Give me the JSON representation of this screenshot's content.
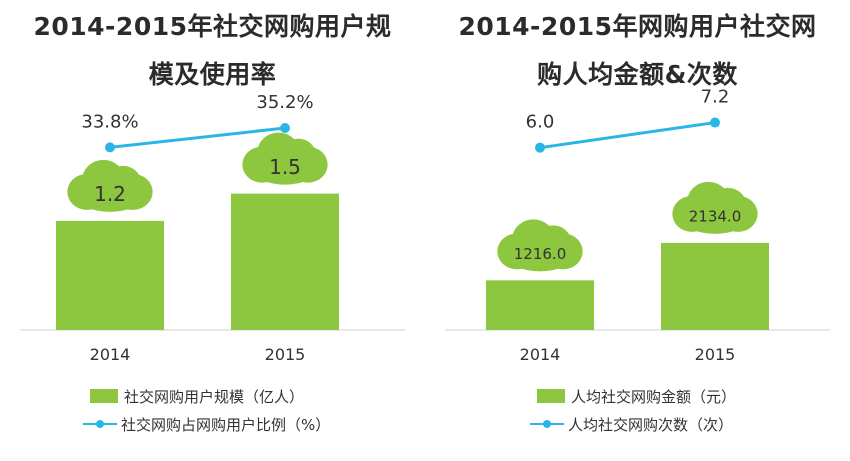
{
  "chart_data": [
    {
      "type": "bar",
      "title": "2014-2015年社交网购用户规模及使用率",
      "title_lines": [
        "2014-2015年社交网购用户规",
        "模及使用率"
      ],
      "categories": [
        "2014",
        "2015"
      ],
      "bar_series": {
        "name": "社交网购用户规模（亿人）",
        "values": [
          1.2,
          1.5
        ],
        "labels": [
          "1.2",
          "1.5"
        ]
      },
      "line_series": {
        "name": "社交网购占网购用户比例（%）",
        "values": [
          33.8,
          35.2
        ],
        "labels": [
          "33.8%",
          "35.2%"
        ]
      },
      "bar_ylim": [
        0,
        2.2
      ],
      "line_ylim": [
        30,
        36.5
      ],
      "colors": {
        "bar": "#8dc63f",
        "line": "#29b6e6",
        "cloud": "#8dc63f"
      }
    },
    {
      "type": "bar",
      "title": "2014-2015年网购用户社交网购人均金额&次数",
      "title_lines": [
        "2014-2015年网购用户社交网",
        "购人均金额&次数"
      ],
      "categories": [
        "2014",
        "2015"
      ],
      "bar_series": {
        "name": "人均社交网购金额（元）",
        "values": [
          1216.0,
          2134.0
        ],
        "labels": [
          "1216.0",
          "2134.0"
        ]
      },
      "line_series": {
        "name": "人均社交网购次数（次）",
        "values": [
          6.0,
          7.2
        ],
        "labels": [
          "6.0",
          "7.2"
        ]
      },
      "bar_ylim": [
        0,
        4900
      ],
      "line_ylim": [
        3.5,
        7.8
      ],
      "colors": {
        "bar": "#8dc63f",
        "line": "#29b6e6",
        "cloud": "#8dc63f"
      }
    }
  ]
}
